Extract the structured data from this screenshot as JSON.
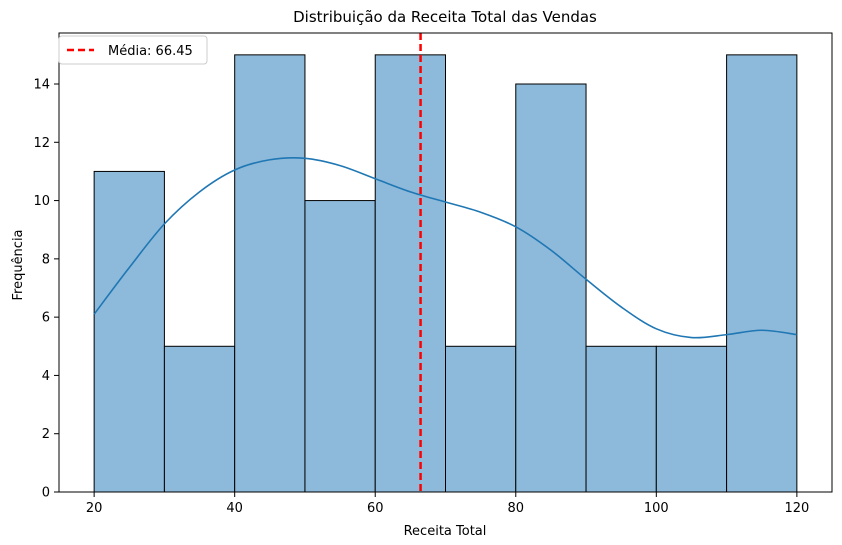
{
  "chart_data": {
    "type": "bar",
    "subtype": "histogram-with-kde",
    "title": "Distribuição da Receita Total das Vendas",
    "xlabel": "Receita Total",
    "ylabel": "Frequência",
    "bins": [
      {
        "start": 20,
        "end": 30,
        "count": 11
      },
      {
        "start": 30,
        "end": 40,
        "count": 5
      },
      {
        "start": 40,
        "end": 50,
        "count": 15
      },
      {
        "start": 50,
        "end": 60,
        "count": 10
      },
      {
        "start": 60,
        "end": 70,
        "count": 15
      },
      {
        "start": 70,
        "end": 80,
        "count": 5
      },
      {
        "start": 80,
        "end": 90,
        "count": 14
      },
      {
        "start": 90,
        "end": 100,
        "count": 5
      },
      {
        "start": 100,
        "end": 110,
        "count": 5
      },
      {
        "start": 110,
        "end": 120,
        "count": 15
      }
    ],
    "kde": {
      "x": [
        20,
        25,
        30,
        35,
        40,
        45,
        50,
        55,
        60,
        65,
        70,
        75,
        80,
        85,
        90,
        95,
        100,
        105,
        110,
        115,
        120
      ],
      "y": [
        6.1,
        7.7,
        9.2,
        10.3,
        11.05,
        11.4,
        11.45,
        11.2,
        10.75,
        10.3,
        9.95,
        9.6,
        9.1,
        8.3,
        7.3,
        6.35,
        5.6,
        5.3,
        5.4,
        5.55,
        5.4
      ]
    },
    "mean_line": {
      "value": 66.45,
      "label": "Média: 66.45",
      "color": "#ff0000",
      "style": "dashed"
    },
    "xticks": [
      "20",
      "40",
      "60",
      "80",
      "100",
      "120"
    ],
    "yticks": [
      "0",
      "2",
      "4",
      "6",
      "8",
      "10",
      "12",
      "14"
    ],
    "xlim": [
      15,
      125
    ],
    "ylim": [
      0,
      15.75
    ],
    "grid": false,
    "legend_placement": "top-left",
    "colors": {
      "bar_fill": "#8db9da",
      "bar_edge": "#000000",
      "kde_line": "#1f77b4",
      "mean_line": "#ff0000"
    }
  }
}
